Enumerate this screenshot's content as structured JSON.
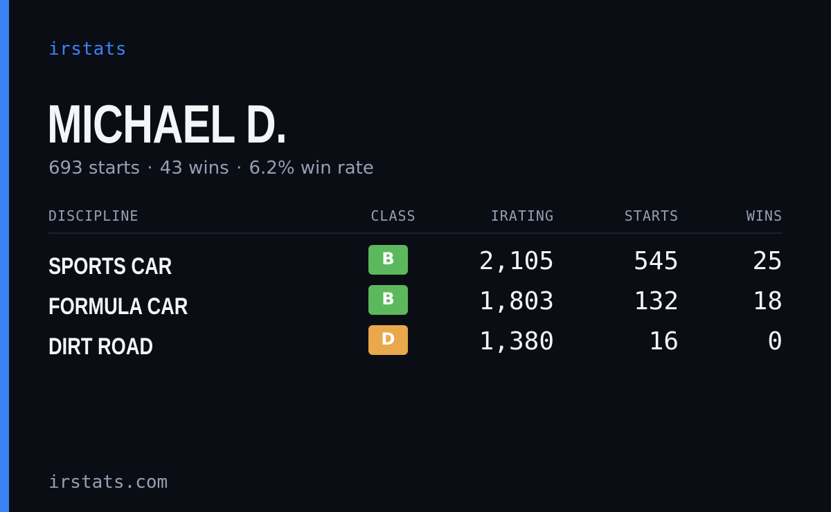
{
  "brand": "irstats",
  "driver_name": "MICHAEL D.",
  "summary": {
    "starts": "693 starts",
    "wins": "43 wins",
    "win_rate": "6.2% win rate",
    "separator": "·"
  },
  "table": {
    "headers": {
      "discipline": "DISCIPLINE",
      "class": "CLASS",
      "irating": "IRATING",
      "starts": "STARTS",
      "wins": "WINS"
    },
    "rows": [
      {
        "discipline": "SPORTS CAR",
        "class": "B",
        "class_color": "#5cb85c",
        "irating": "2,105",
        "starts": "545",
        "wins": "25"
      },
      {
        "discipline": "FORMULA CAR",
        "class": "B",
        "class_color": "#5cb85c",
        "irating": "1,803",
        "starts": "132",
        "wins": "18"
      },
      {
        "discipline": "DIRT ROAD",
        "class": "D",
        "class_color": "#e8a84b",
        "irating": "1,380",
        "starts": "16",
        "wins": "0"
      }
    ]
  },
  "footer": "irstats.com",
  "colors": {
    "background": "#0a0d14",
    "accent": "#3b82f6",
    "text_primary": "#f3f5f8",
    "text_muted": "#94a0b4",
    "class_b": "#5cb85c",
    "class_d": "#e8a84b"
  }
}
